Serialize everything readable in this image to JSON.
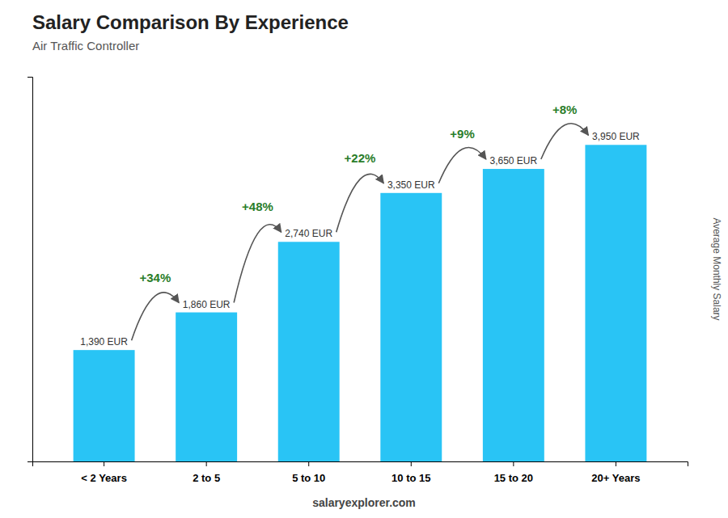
{
  "chart_data": {
    "type": "bar",
    "title": "Salary Comparison By Experience",
    "subtitle": "Air Traffic Controller",
    "ylabel": "Average Monthly Salary",
    "footer": "salaryexplorer.com",
    "categories": [
      "< 2 Years",
      "2 to 5",
      "5 to 10",
      "10 to 15",
      "15 to 20",
      "20+ Years"
    ],
    "values": [
      1390,
      1860,
      2740,
      3350,
      3650,
      3950
    ],
    "value_labels": [
      "1,390 EUR",
      "1,860 EUR",
      "2,740 EUR",
      "3,350 EUR",
      "3,650 EUR",
      "3,950 EUR"
    ],
    "annotations": [
      "+34%",
      "+48%",
      "+22%",
      "+9%",
      "+8%"
    ],
    "color": "#29c4f5",
    "ylim": [
      0,
      4800
    ],
    "grid": false,
    "data_labels": true,
    "tick_labels": "x"
  }
}
